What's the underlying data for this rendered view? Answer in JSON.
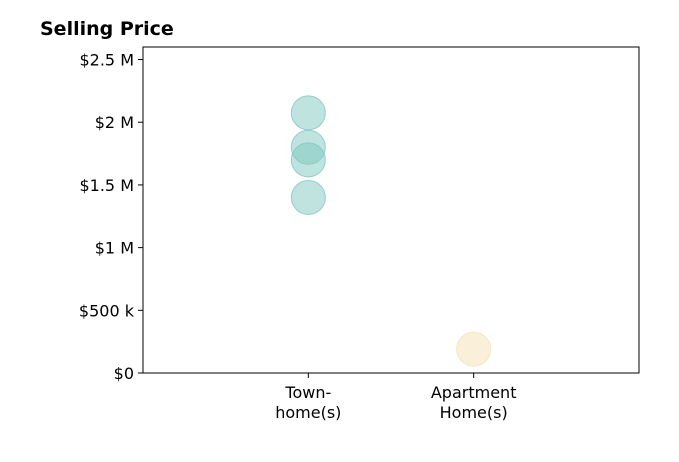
{
  "chart_data": {
    "type": "scatter",
    "title": "Selling Price",
    "xlabel": "",
    "ylabel": "",
    "categories": [
      [
        "Town-",
        "home(s)"
      ],
      [
        "Apartment",
        "Home(s)"
      ]
    ],
    "y_ticks": [
      {
        "value": 0,
        "label": "$0"
      },
      {
        "value": 500000,
        "label": "$500 k"
      },
      {
        "value": 1000000,
        "label": "$1 M"
      },
      {
        "value": 1500000,
        "label": "$1.5 M"
      },
      {
        "value": 2000000,
        "label": "$2 M"
      },
      {
        "value": 2500000,
        "label": "$2.5 M"
      }
    ],
    "ylim": [
      0,
      2600000
    ],
    "xlim": [
      -1,
      2
    ],
    "grid": false,
    "series": [
      {
        "category_index": 0,
        "color": "#7fc7bf",
        "values": [
          2075000,
          1800000,
          1700000,
          1400000
        ]
      },
      {
        "category_index": 1,
        "color": "#f5e1b4",
        "values": [
          190000
        ]
      }
    ]
  }
}
